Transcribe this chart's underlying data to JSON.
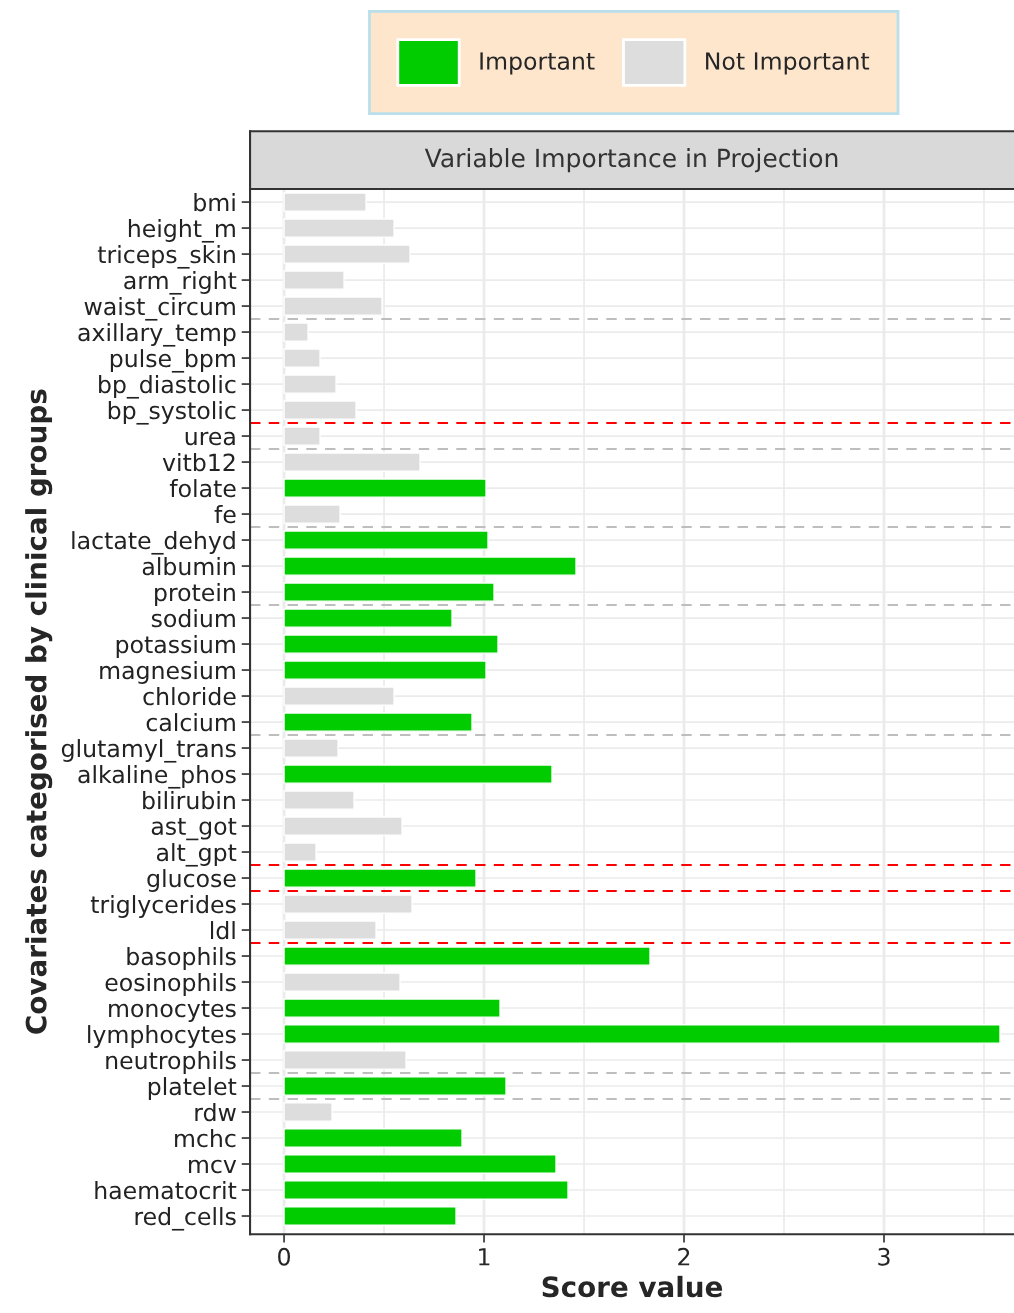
{
  "chart_data": {
    "type": "bar",
    "orientation": "horizontal",
    "title": "Variable Importance in Projection",
    "xlabel": "Score value",
    "ylabel": "Covariates categorised by clinical groups",
    "categories": [
      "bmi",
      "height_m",
      "triceps_skin",
      "arm_right",
      "waist_circum",
      "axillary_temp",
      "pulse_bpm",
      "bp_diastolic",
      "bp_systolic",
      "urea",
      "vitb12",
      "folate",
      "fe",
      "lactate_dehyd",
      "albumin",
      "protein",
      "sodium",
      "potassium",
      "magnesium",
      "chloride",
      "calcium",
      "glutamyl_trans",
      "alkaline_phos",
      "bilirubin",
      "ast_got",
      "alt_gpt",
      "glucose",
      "triglycerides",
      "ldl",
      "basophils",
      "eosinophils",
      "monocytes",
      "lymphocytes",
      "neutrophils",
      "platelet",
      "rdw",
      "mchc",
      "mcv",
      "haematocrit",
      "red_cells"
    ],
    "series": [
      {
        "name": "Important",
        "color": "#00cc00",
        "values": [
          null,
          null,
          null,
          null,
          null,
          null,
          null,
          null,
          null,
          null,
          null,
          1.01,
          null,
          1.02,
          1.46,
          1.05,
          0.84,
          1.07,
          1.01,
          null,
          0.94,
          null,
          1.34,
          null,
          null,
          null,
          0.96,
          null,
          null,
          1.83,
          null,
          1.08,
          3.58,
          null,
          1.11,
          null,
          0.89,
          1.36,
          1.42,
          0.86
        ]
      },
      {
        "name": "Not Important",
        "color": "#dddddd",
        "values": [
          0.41,
          0.55,
          0.63,
          0.3,
          0.49,
          0.12,
          0.18,
          0.26,
          0.36,
          0.18,
          0.68,
          null,
          0.28,
          null,
          null,
          null,
          null,
          null,
          null,
          0.55,
          null,
          0.27,
          null,
          0.35,
          0.59,
          0.16,
          null,
          0.64,
          0.46,
          null,
          0.58,
          null,
          null,
          0.61,
          null,
          0.24,
          null,
          null,
          null,
          null
        ]
      }
    ],
    "xlim": [
      -0.17,
      3.65
    ],
    "xticks": [
      0,
      1,
      2,
      3
    ],
    "grid": true,
    "legend": "top"
  }
}
